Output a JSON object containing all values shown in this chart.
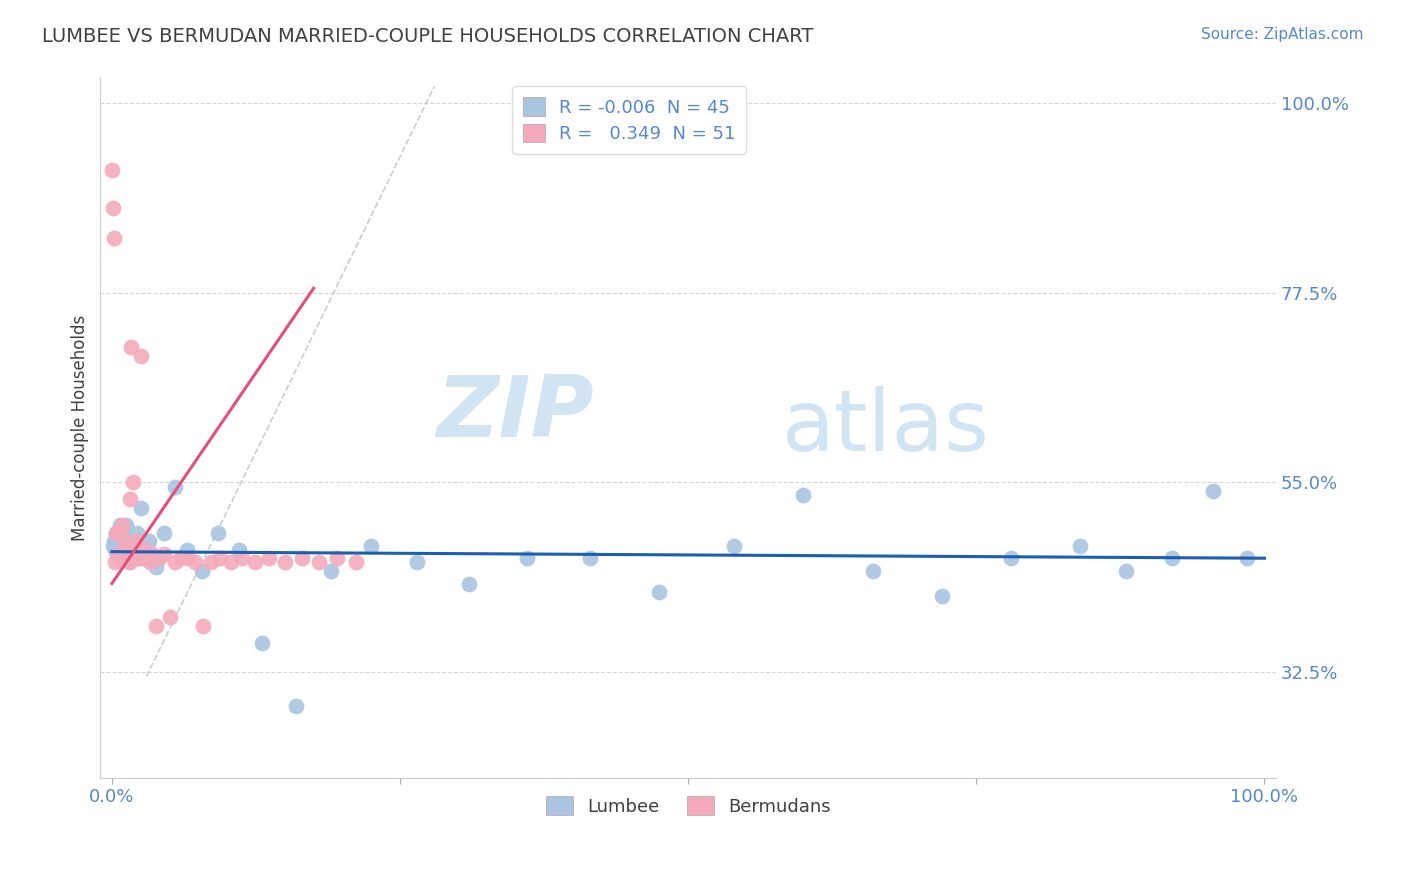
{
  "title": "LUMBEE VS BERMUDAN MARRIED-COUPLE HOUSEHOLDS CORRELATION CHART",
  "source": "Source: ZipAtlas.com",
  "ylabel": "Married-couple Households",
  "lumbee_R": "-0.006",
  "lumbee_N": "45",
  "bermudan_R": "0.349",
  "bermudan_N": "51",
  "lumbee_color": "#aac4e2",
  "bermudan_color": "#f4aabb",
  "lumbee_line_color": "#1a5fb4",
  "bermudan_line_color": "#e0507a",
  "diagonal_color": "#cccccc",
  "background_color": "#ffffff",
  "grid_color": "#cccccc",
  "title_color": "#404040",
  "tick_color": "#5588cc",
  "watermark_color": "#d0e4f4",
  "watermark": "ZIPatlas",
  "xlim": [
    -0.01,
    1.01
  ],
  "ylim": [
    0.2,
    1.03
  ],
  "ytick_positions": [
    0.325,
    0.55,
    0.775,
    1.0
  ],
  "ytick_labels": [
    "32.5%",
    "55.0%",
    "77.5%",
    "100.0%"
  ],
  "lumbee_x": [
    0.001,
    0.002,
    0.003,
    0.004,
    0.005,
    0.006,
    0.007,
    0.008,
    0.009,
    0.01,
    0.012,
    0.014,
    0.016,
    0.018,
    0.02,
    0.022,
    0.025,
    0.028,
    0.032,
    0.038,
    0.045,
    0.055,
    0.065,
    0.078,
    0.092,
    0.11,
    0.13,
    0.16,
    0.19,
    0.225,
    0.265,
    0.31,
    0.36,
    0.415,
    0.475,
    0.54,
    0.6,
    0.66,
    0.72,
    0.78,
    0.84,
    0.88,
    0.92,
    0.955,
    0.985
  ],
  "lumbee_y": [
    0.475,
    0.48,
    0.47,
    0.49,
    0.465,
    0.48,
    0.5,
    0.475,
    0.46,
    0.49,
    0.5,
    0.475,
    0.455,
    0.48,
    0.46,
    0.49,
    0.52,
    0.46,
    0.48,
    0.45,
    0.49,
    0.545,
    0.47,
    0.445,
    0.49,
    0.47,
    0.36,
    0.285,
    0.445,
    0.475,
    0.455,
    0.43,
    0.46,
    0.46,
    0.42,
    0.475,
    0.535,
    0.445,
    0.415,
    0.46,
    0.475,
    0.445,
    0.46,
    0.54,
    0.46
  ],
  "bermudan_x": [
    0.0005,
    0.001,
    0.002,
    0.003,
    0.004,
    0.005,
    0.006,
    0.007,
    0.008,
    0.009,
    0.01,
    0.011,
    0.012,
    0.013,
    0.014,
    0.015,
    0.016,
    0.017,
    0.018,
    0.019,
    0.02,
    0.021,
    0.022,
    0.023,
    0.024,
    0.025,
    0.027,
    0.029,
    0.031,
    0.033,
    0.035,
    0.038,
    0.041,
    0.045,
    0.05,
    0.055,
    0.06,
    0.066,
    0.072,
    0.079,
    0.086,
    0.094,
    0.103,
    0.113,
    0.124,
    0.136,
    0.15,
    0.165,
    0.18,
    0.195,
    0.212
  ],
  "bermudan_y": [
    0.92,
    0.875,
    0.84,
    0.455,
    0.49,
    0.465,
    0.46,
    0.49,
    0.465,
    0.5,
    0.46,
    0.48,
    0.465,
    0.47,
    0.465,
    0.455,
    0.53,
    0.71,
    0.55,
    0.46,
    0.465,
    0.48,
    0.465,
    0.46,
    0.46,
    0.7,
    0.46,
    0.47,
    0.465,
    0.455,
    0.465,
    0.38,
    0.46,
    0.465,
    0.39,
    0.455,
    0.46,
    0.46,
    0.455,
    0.38,
    0.455,
    0.46,
    0.455,
    0.46,
    0.455,
    0.46,
    0.455,
    0.46,
    0.455,
    0.46,
    0.455
  ],
  "bermudan_line_x": [
    0.0,
    0.175
  ],
  "bermudan_line_y_start": 0.43,
  "bermudan_line_y_end": 0.78
}
